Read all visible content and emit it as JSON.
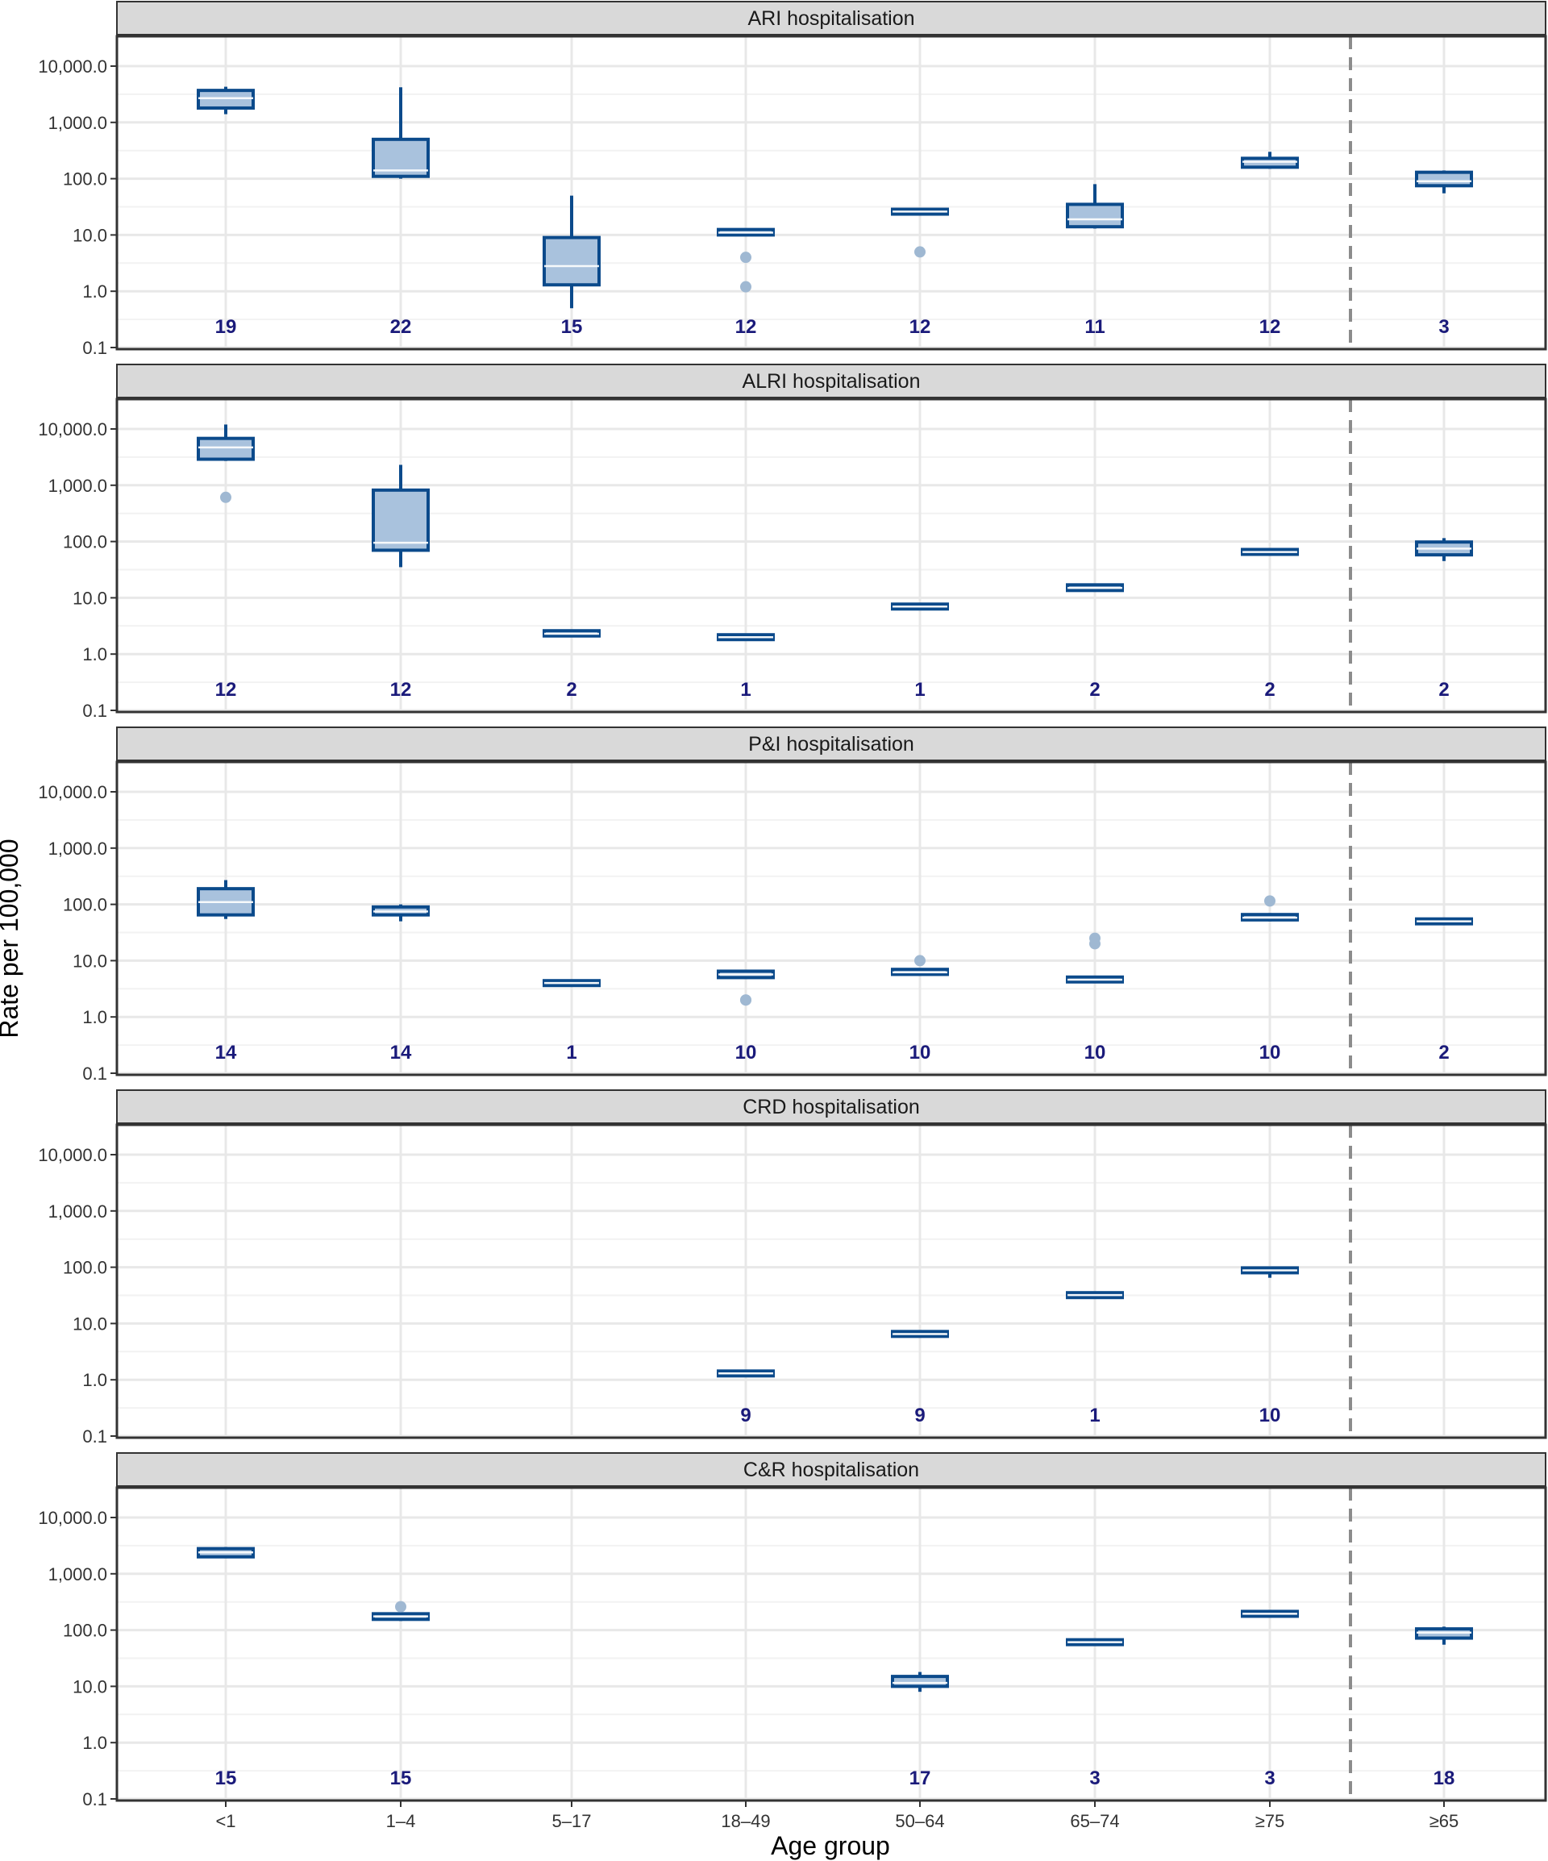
{
  "colors": {
    "box_fill": "#a9c2dd",
    "box_stroke": "#0b4a8b",
    "outlier": "#9fb8d2",
    "count_text": "#1a1a7a",
    "strip_bg": "#d9d9d9",
    "grid": "#e8e8e8",
    "divider": "#8c8c8c"
  },
  "chart_data": {
    "type": "box",
    "log_scale": true,
    "xlabel": "Age group",
    "ylabel": "Rate per 100,000",
    "ylim": [
      0.1,
      10000
    ],
    "y_ticks": [
      {
        "value": 0.1,
        "label": "0.1"
      },
      {
        "value": 1,
        "label": "1.0"
      },
      {
        "value": 10,
        "label": "10.0"
      },
      {
        "value": 100,
        "label": "100.0"
      },
      {
        "value": 1000,
        "label": "1,000.0"
      },
      {
        "value": 10000,
        "label": "10,000.0"
      }
    ],
    "categories": [
      "<1",
      "1–4",
      "5–17",
      "18–49",
      "50–64",
      "65–74",
      "≥75",
      "≥65"
    ],
    "grid": true,
    "divider_between": [
      "≥75",
      "≥65"
    ],
    "panels": [
      {
        "title": "ARI hospitalisation",
        "boxes": [
          {
            "category": "<1",
            "n": "19",
            "q1": 1800,
            "median": 2700,
            "q3": 3700,
            "lo": 1400,
            "hi": 4300,
            "outliers": []
          },
          {
            "category": "1–4",
            "n": "22",
            "q1": 110,
            "median": 140,
            "q3": 500,
            "lo": 100,
            "hi": 4200,
            "outliers": []
          },
          {
            "category": "5–17",
            "n": "15",
            "q1": 1.3,
            "median": 2.8,
            "q3": 9,
            "lo": 0.5,
            "hi": 50,
            "outliers": []
          },
          {
            "category": "18–49",
            "n": "12",
            "q1": 10,
            "median": 11,
            "q3": 12.5,
            "lo": 9.5,
            "hi": 13,
            "outliers": [
              4,
              1.2
            ]
          },
          {
            "category": "50–64",
            "n": "12",
            "q1": 24,
            "median": 26,
            "q3": 28,
            "lo": 23,
            "hi": 29,
            "outliers": [
              5
            ]
          },
          {
            "category": "65–74",
            "n": "11",
            "q1": 14,
            "median": 19,
            "q3": 35,
            "lo": 13,
            "hi": 80,
            "outliers": []
          },
          {
            "category": "≥75",
            "n": "12",
            "q1": 160,
            "median": 200,
            "q3": 230,
            "lo": 150,
            "hi": 300,
            "outliers": []
          },
          {
            "category": "≥65",
            "n": "3",
            "q1": 75,
            "median": 90,
            "q3": 130,
            "lo": 55,
            "hi": 140,
            "outliers": []
          }
        ]
      },
      {
        "title": "ALRI hospitalisation",
        "boxes": [
          {
            "category": "<1",
            "n": "12",
            "q1": 2900,
            "median": 4700,
            "q3": 6800,
            "lo": 2700,
            "hi": 12000,
            "outliers": [
              610
            ]
          },
          {
            "category": "1–4",
            "n": "12",
            "q1": 70,
            "median": 95,
            "q3": 820,
            "lo": 35,
            "hi": 2300,
            "outliers": []
          },
          {
            "category": "5–17",
            "n": "2",
            "q1": 2.1,
            "median": 2.3,
            "q3": 2.6,
            "lo": 2.0,
            "hi": 2.7,
            "outliers": []
          },
          {
            "category": "18–49",
            "n": "1",
            "q1": 1.9,
            "median": 2.0,
            "q3": 2.1,
            "lo": 1.9,
            "hi": 2.1,
            "outliers": []
          },
          {
            "category": "50–64",
            "n": "1",
            "q1": 6.7,
            "median": 7.0,
            "q3": 7.3,
            "lo": 6.7,
            "hi": 7.3,
            "outliers": []
          },
          {
            "category": "65–74",
            "n": "2",
            "q1": 13.5,
            "median": 15,
            "q3": 17,
            "lo": 13,
            "hi": 17.5,
            "outliers": []
          },
          {
            "category": "≥75",
            "n": "2",
            "q1": 62,
            "median": 65,
            "q3": 69,
            "lo": 61,
            "hi": 70,
            "outliers": []
          },
          {
            "category": "≥65",
            "n": "2",
            "q1": 58,
            "median": 75,
            "q3": 98,
            "lo": 45,
            "hi": 115,
            "outliers": []
          }
        ]
      },
      {
        "title": "P&I hospitalisation",
        "boxes": [
          {
            "category": "<1",
            "n": "14",
            "q1": 65,
            "median": 110,
            "q3": 190,
            "lo": 55,
            "hi": 270,
            "outliers": []
          },
          {
            "category": "1–4",
            "n": "14",
            "q1": 65,
            "median": 75,
            "q3": 90,
            "lo": 50,
            "hi": 100,
            "outliers": []
          },
          {
            "category": "5–17",
            "n": "1",
            "q1": 3.8,
            "median": 4.0,
            "q3": 4.2,
            "lo": 3.8,
            "hi": 4.2,
            "outliers": []
          },
          {
            "category": "18–49",
            "n": "10",
            "q1": 5,
            "median": 5.7,
            "q3": 6.5,
            "lo": 4.8,
            "hi": 6.8,
            "outliers": [
              2,
              2
            ]
          },
          {
            "category": "50–64",
            "n": "10",
            "q1": 5.7,
            "median": 6.2,
            "q3": 7.0,
            "lo": 5.5,
            "hi": 7.2,
            "outliers": [
              10
            ]
          },
          {
            "category": "65–74",
            "n": "10",
            "q1": 4.2,
            "median": 4.6,
            "q3": 5.1,
            "lo": 4.0,
            "hi": 5.3,
            "outliers": [
              20,
              25
            ]
          },
          {
            "category": "≥75",
            "n": "10",
            "q1": 53,
            "median": 58,
            "q3": 66,
            "lo": 50,
            "hi": 70,
            "outliers": [
              115
            ]
          },
          {
            "category": "≥65",
            "n": "2",
            "q1": 47,
            "median": 50,
            "q3": 53,
            "lo": 46,
            "hi": 54,
            "outliers": []
          }
        ]
      },
      {
        "title": "CRD hospitalisation",
        "boxes": [
          {
            "category": "18–49",
            "n": "9",
            "q1": 1.2,
            "median": 1.3,
            "q3": 1.4,
            "lo": 1.15,
            "hi": 1.45,
            "outliers": []
          },
          {
            "category": "50–64",
            "n": "9",
            "q1": 6.0,
            "median": 6.5,
            "q3": 7.1,
            "lo": 5.8,
            "hi": 7.3,
            "outliers": []
          },
          {
            "category": "65–74",
            "n": "1",
            "q1": 30,
            "median": 32,
            "q3": 34,
            "lo": 30,
            "hi": 34,
            "outliers": []
          },
          {
            "category": "≥75",
            "n": "10",
            "q1": 80,
            "median": 88,
            "q3": 97,
            "lo": 65,
            "hi": 100,
            "outliers": []
          }
        ]
      },
      {
        "title": "C&R hospitalisation",
        "boxes": [
          {
            "category": "<1",
            "n": "15",
            "q1": 2000,
            "median": 2400,
            "q3": 2800,
            "lo": 1950,
            "hi": 3000,
            "outliers": []
          },
          {
            "category": "1–4",
            "n": "15",
            "q1": 155,
            "median": 175,
            "q3": 195,
            "lo": 145,
            "hi": 200,
            "outliers": [
              260
            ]
          },
          {
            "category": "50–64",
            "n": "17",
            "q1": 10,
            "median": 11.5,
            "q3": 15,
            "lo": 8,
            "hi": 18,
            "outliers": []
          },
          {
            "category": "65–74",
            "n": "3",
            "q1": 58,
            "median": 61,
            "q3": 64,
            "lo": 57,
            "hi": 65,
            "outliers": []
          },
          {
            "category": "≥75",
            "n": "3",
            "q1": 180,
            "median": 195,
            "q3": 210,
            "lo": 175,
            "hi": 215,
            "outliers": []
          },
          {
            "category": "≥65",
            "n": "18",
            "q1": 72,
            "median": 90,
            "q3": 105,
            "lo": 55,
            "hi": 115,
            "outliers": []
          }
        ]
      }
    ]
  }
}
